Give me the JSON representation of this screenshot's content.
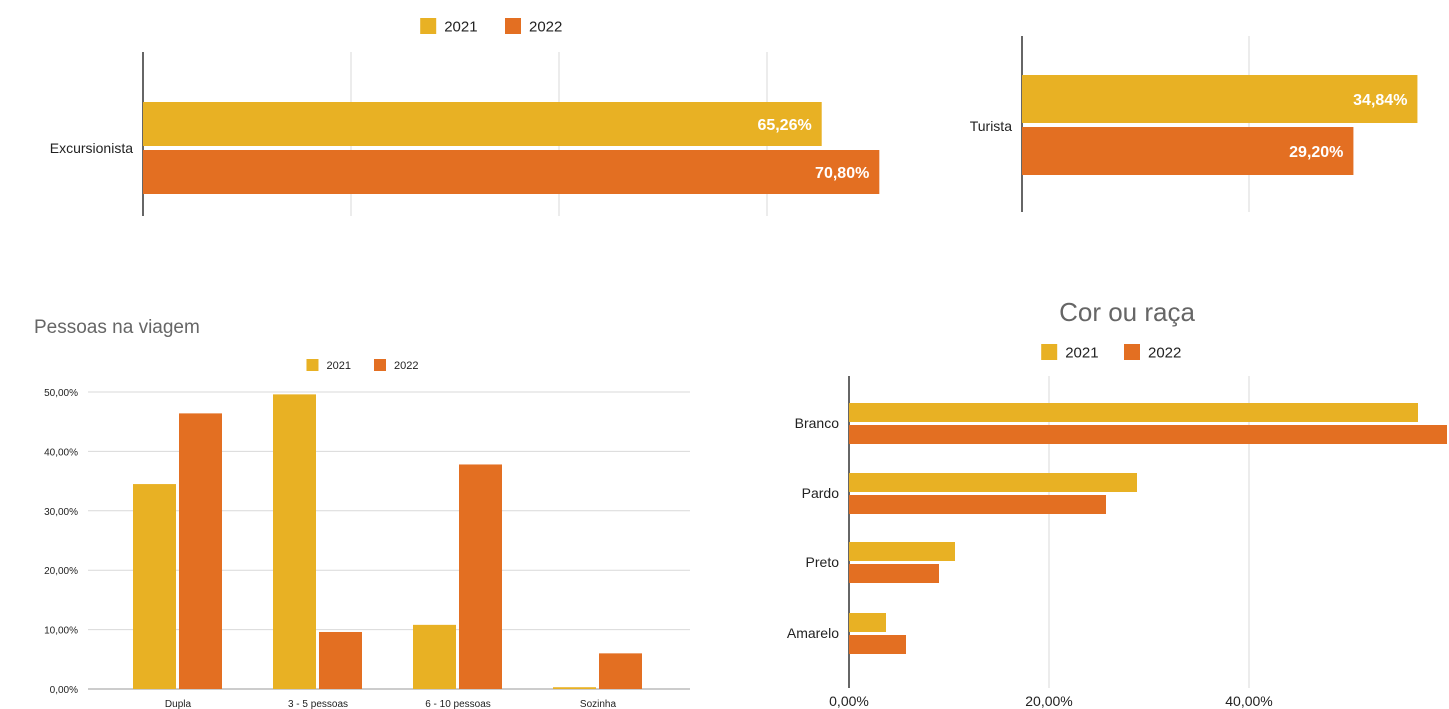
{
  "colors": {
    "c2021": "#E8B124",
    "c2022": "#E36F22",
    "grid": "#D9D9D9",
    "axis": "#333333",
    "text": "#222222",
    "title": "#666666"
  },
  "chart_data": [
    {
      "id": "excursionista",
      "type": "bar",
      "orientation": "horizontal",
      "title": "",
      "legend": [
        "2021",
        "2022"
      ],
      "legend_position": "top",
      "categories": [
        "Excursionista"
      ],
      "series": [
        {
          "name": "2021",
          "values": [
            65.26
          ],
          "labels": [
            "65,26%"
          ]
        },
        {
          "name": "2022",
          "values": [
            70.8
          ],
          "labels": [
            "70,80%"
          ]
        }
      ],
      "xlim": [
        0,
        80
      ],
      "grid": true
    },
    {
      "id": "turista",
      "type": "bar",
      "orientation": "horizontal",
      "title": "",
      "categories": [
        "Turista"
      ],
      "series": [
        {
          "name": "2021",
          "values": [
            34.84
          ],
          "labels": [
            "34,84%"
          ]
        },
        {
          "name": "2022",
          "values": [
            29.2
          ],
          "labels": [
            "29,20%"
          ]
        }
      ],
      "xlim": [
        0,
        40
      ],
      "grid": true
    },
    {
      "id": "pessoas",
      "type": "bar",
      "orientation": "vertical",
      "title": "Pessoas na viagem",
      "legend": [
        "2021",
        "2022"
      ],
      "legend_position": "top",
      "categories": [
        "Dupla",
        "3 - 5 pessoas",
        "6 - 10 pessoas",
        "Sozinha"
      ],
      "series": [
        {
          "name": "2021",
          "values": [
            34.5,
            49.6,
            10.8,
            0.3
          ]
        },
        {
          "name": "2022",
          "values": [
            46.4,
            9.6,
            37.8,
            6.0
          ]
        }
      ],
      "ylim": [
        0,
        50
      ],
      "yticks": [
        "0,00%",
        "10,00%",
        "20,00%",
        "30,00%",
        "40,00%",
        "50,00%"
      ],
      "grid": true
    },
    {
      "id": "cor",
      "type": "bar",
      "orientation": "horizontal",
      "title": "Cor ou raça",
      "legend": [
        "2021",
        "2022"
      ],
      "legend_position": "top",
      "categories": [
        "Branco",
        "Pardo",
        "Preto",
        "Amarelo"
      ],
      "series": [
        {
          "name": "2021",
          "values": [
            56.9,
            28.8,
            10.6,
            3.7
          ]
        },
        {
          "name": "2022",
          "values": [
            59.8,
            25.7,
            9.0,
            5.7
          ]
        }
      ],
      "xlim": [
        0,
        60
      ],
      "xticks": [
        "0,00%",
        "20,00%",
        "40,00%"
      ],
      "grid": true
    }
  ]
}
